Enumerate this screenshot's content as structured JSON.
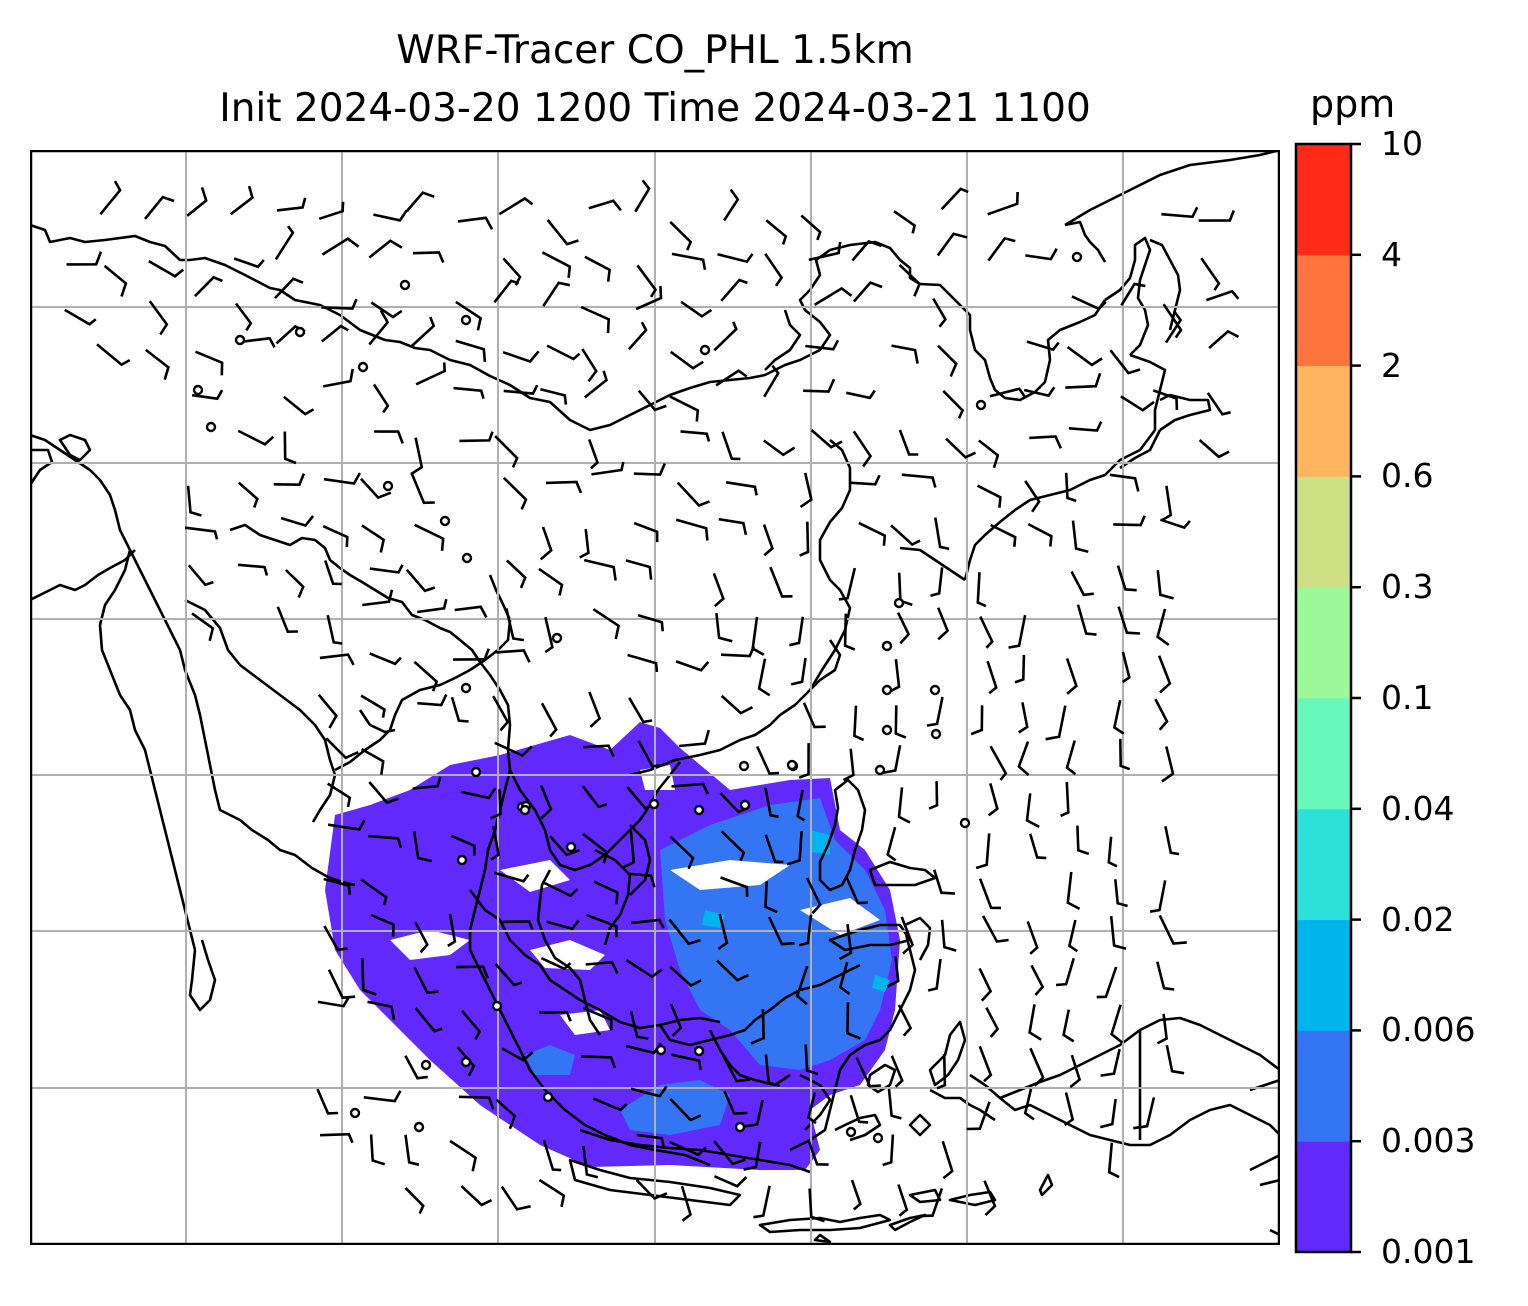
{
  "title": {
    "line1": "WRF-Tracer CO_PHL 1.5km",
    "line2": "Init 2024-03-20 1200 Time 2024-03-21 1100"
  },
  "colorbar": {
    "units": "ppm",
    "ticks": [
      "0.001",
      "0.003",
      "0.006",
      "0.02",
      "0.04",
      "0.1",
      "0.3",
      "0.6",
      "2",
      "4",
      "10"
    ],
    "colors": [
      "#6129fb",
      "#3375f2",
      "#00b4ec",
      "#2de1d9",
      "#66f9bb",
      "#9bf99a",
      "#cde184",
      "#ffb560",
      "#ff733e",
      "#ff2a17"
    ]
  },
  "map": {
    "coastline_color": "#000000",
    "gridline_color": "#b0b0b0",
    "tracer_fill": [
      "#6129fb",
      "#3375f2",
      "#00b4ec"
    ],
    "barb_color": "#000000"
  }
}
